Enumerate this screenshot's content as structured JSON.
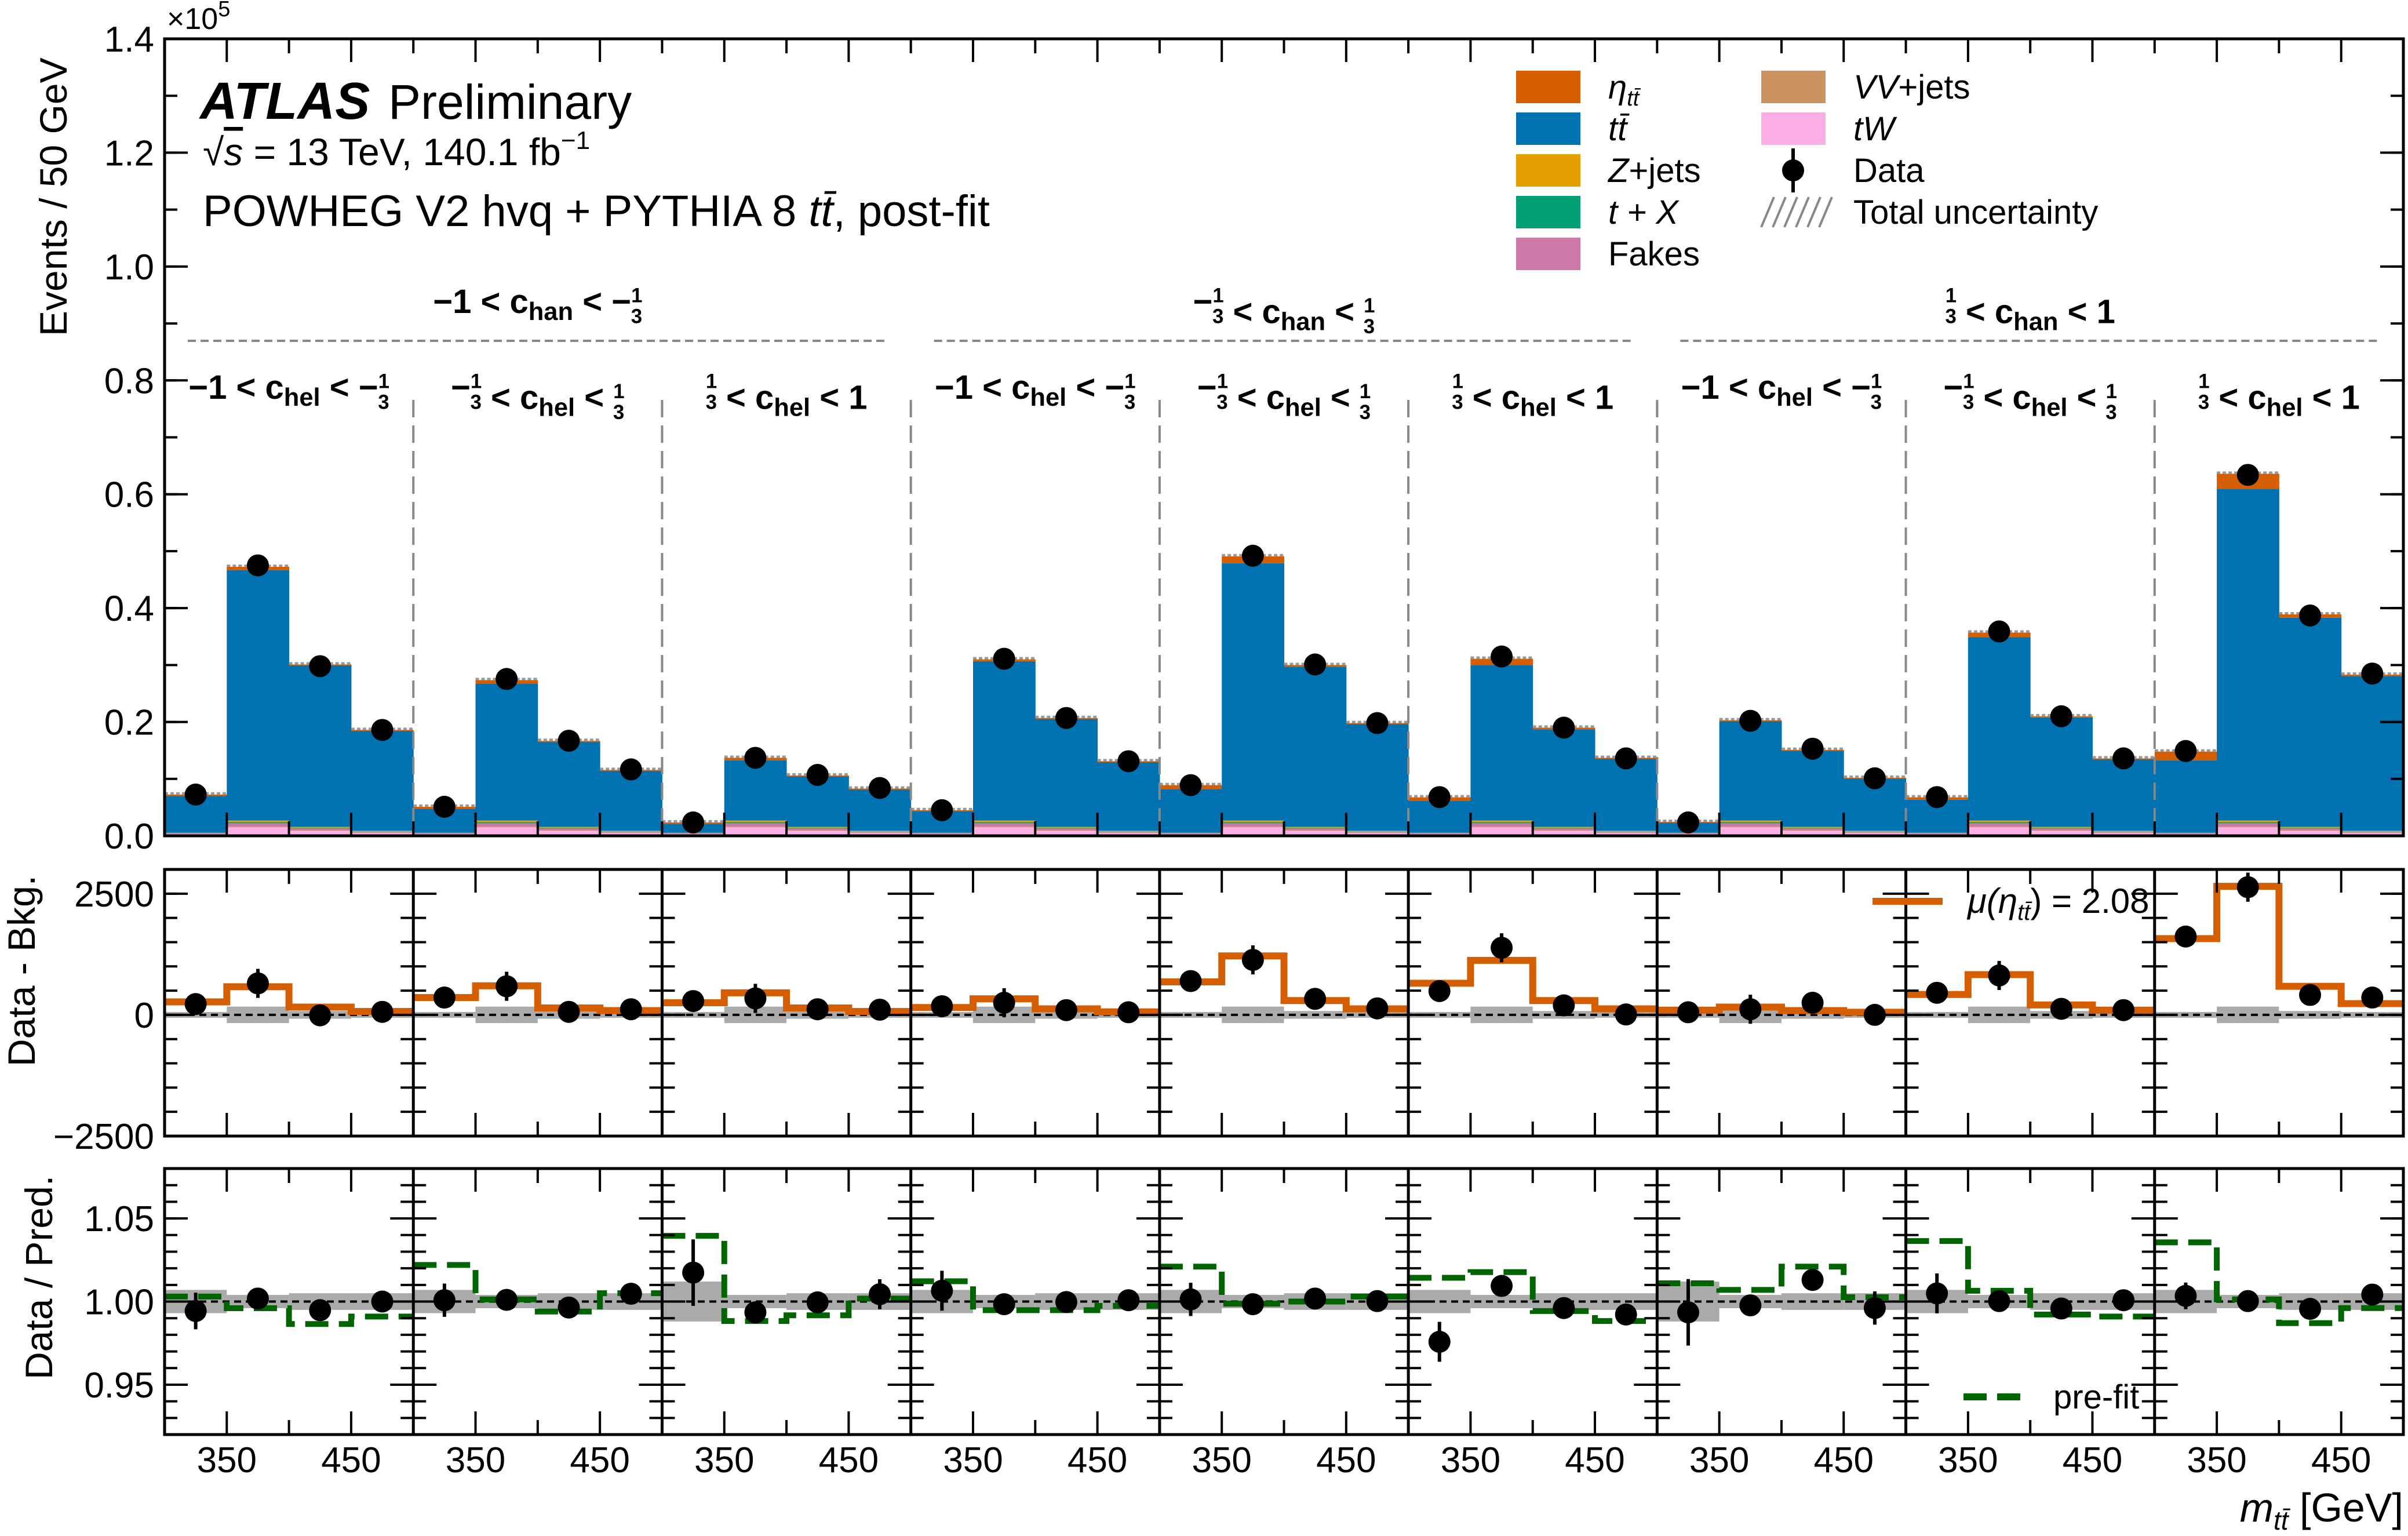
{
  "header": {
    "experiment": "ATLAS",
    "status": "Preliminary",
    "energy_line_prefix": "√",
    "energy_line_s": "s",
    "energy_line": " = 13 TeV, 140.1 fb",
    "energy_line_sup": "−1",
    "generator_line": "POWHEG V2 hvq + PYTHIA 8 ",
    "generator_tt": "tt̄",
    "generator_suffix": ", post-fit"
  },
  "chart_data": {
    "type": "bar",
    "subtype": "stacked histogram with ratio panels",
    "x_axis": {
      "label": "m",
      "label_sub": "tt̄",
      "label_unit": " [GeV]",
      "bin_edges_per_region": [
        300,
        350,
        400,
        450,
        500
      ],
      "tick_labels": [
        "350",
        "450"
      ]
    },
    "main_panel": {
      "ylabel": "Events / 50 GeV",
      "multiplier": "×10",
      "multiplier_exp": "5",
      "ylim": [
        0,
        1.4
      ],
      "yticks": [
        "0.0",
        "0.2",
        "0.4",
        "0.6",
        "0.8",
        "1.0",
        "1.2",
        "1.4"
      ],
      "total_prediction": [
        0.0725,
        0.4725,
        0.301,
        0.186,
        0.051,
        0.2735,
        0.1667,
        0.1157,
        0.0235,
        0.137,
        0.106,
        0.083,
        0.045,
        0.31,
        0.207,
        0.131,
        0.089,
        0.491,
        0.3,
        0.198,
        0.0676,
        0.311,
        0.19,
        0.137,
        0.0245,
        0.203,
        0.151,
        0.102,
        0.0676,
        0.357,
        0.21,
        0.136,
        0.148,
        0.636,
        0.389,
        0.283
      ],
      "data": [
        0.0725,
        0.475,
        0.298,
        0.186,
        0.051,
        0.2755,
        0.167,
        0.1167,
        0.0235,
        0.137,
        0.107,
        0.084,
        0.045,
        0.311,
        0.207,
        0.131,
        0.089,
        0.492,
        0.301,
        0.198,
        0.068,
        0.315,
        0.19,
        0.136,
        0.0235,
        0.202,
        0.153,
        0.101,
        0.068,
        0.359,
        0.21,
        0.136,
        0.149,
        0.634,
        0.387,
        0.285
      ],
      "backgrounds_per_region_pattern": {
        "tW": [
          0.003,
          0.015,
          0.009,
          0.005
        ],
        "VV+jets": [
          0.0003,
          0.001,
          0.0007,
          0.0004
        ],
        "Fakes": [
          0.001,
          0.006,
          0.003,
          0.002
        ],
        "t+X": [
          0.0005,
          0.002,
          0.001,
          0.0005
        ],
        "Z+jets": [
          0.0005,
          0.003,
          0.002,
          0.001
        ]
      }
    },
    "legend": [
      {
        "key": "signal",
        "label": "η",
        "sub": "tt̄",
        "italic": true,
        "color": "#d55e00"
      },
      {
        "key": "ttbar",
        "label": "tt̄",
        "sub": "",
        "italic": true,
        "color": "#0072b2"
      },
      {
        "key": "Z+jets",
        "label": "Z",
        "suffix": "+jets",
        "italic": true,
        "color": "#e69f00"
      },
      {
        "key": "t+X",
        "label": "t + X",
        "italic": true,
        "color": "#009e73"
      },
      {
        "key": "Fakes",
        "label": "Fakes",
        "italic": false,
        "color": "#cc79a7"
      },
      {
        "key": "VV+jets",
        "label": "VV",
        "suffix": "+jets",
        "italic": true,
        "color": "#ca9161"
      },
      {
        "key": "tW",
        "label": "tW",
        "italic": true,
        "color": "#fbafe4"
      },
      {
        "key": "data",
        "label": "Data",
        "italic": false,
        "color": "#000000"
      },
      {
        "key": "unc",
        "label": "Total uncertainty",
        "italic": false,
        "color": "#888888"
      }
    ],
    "regions_chan": [
      {
        "lo": "−1",
        "var": "c",
        "sub": "han",
        "hi": "−1/3"
      },
      {
        "lo": "−1/3",
        "var": "c",
        "sub": "han",
        "hi": "1/3"
      },
      {
        "lo": "1/3",
        "var": "c",
        "sub": "han",
        "hi": "1"
      }
    ],
    "regions_chel": [
      {
        "lo": "−1",
        "var": "c",
        "sub": "hel",
        "hi": "−1/3"
      },
      {
        "lo": "−1/3",
        "var": "c",
        "sub": "hel",
        "hi": "1/3"
      },
      {
        "lo": "1/3",
        "var": "c",
        "sub": "hel",
        "hi": "1"
      }
    ],
    "diff_panel": {
      "ylabel": "Data - Bkg.",
      "ylim": [
        -2500,
        3000
      ],
      "yticks": [
        "−2500",
        "0",
        "2500"
      ],
      "legend_label": "μ(η",
      "legend_sub": "tt̄",
      "legend_value": ") = 2.08",
      "signal_color": "#d55e00",
      "signal": [
        268,
        580,
        160,
        71,
        357,
        600,
        143,
        89,
        250,
        455,
        143,
        71,
        152,
        330,
        125,
        62,
        680,
        1215,
        295,
        125,
        652,
        1125,
        295,
        125,
        98,
        161,
        89,
        54,
        420,
        830,
        205,
        98,
        1572,
        2652,
        589,
        232
      ],
      "data": [
        223,
        650,
        -10,
        62,
        357,
        590,
        62,
        116,
        285,
        340,
        116,
        107,
        179,
        250,
        98,
        54,
        697,
        1134,
        330,
        134,
        491,
        1384,
        196,
        9,
        54,
        116,
        250,
        0,
        455,
        813,
        125,
        98,
        1616,
        2634,
        411,
        357
      ],
      "data_err_pattern": [
        130,
        300,
        220,
        170
      ],
      "unc_pattern": [
        60,
        170,
        80,
        60
      ]
    },
    "ratio_panel": {
      "ylabel": "Data / Pred.",
      "ylim": [
        0.92,
        1.08
      ],
      "yticks": [
        "0.95",
        "1.00",
        "1.05"
      ],
      "prefit_label": "pre-fit",
      "prefit_color": "#006400",
      "data": [
        0.9943,
        1.0018,
        0.9948,
        1.0,
        1.0008,
        1.001,
        0.9964,
        1.0047,
        1.0174,
        0.9935,
        0.9995,
        1.0044,
        1.0065,
        0.9984,
        0.9997,
        1.0008,
        1.0013,
        0.9984,
        1.0018,
        1.0003,
        0.9758,
        1.0094,
        0.9961,
        0.9922,
        0.9935,
        0.9977,
        1.013,
        0.9961,
        1.0049,
        1.0003,
        0.9958,
        1.0008,
        1.0034,
        1.0003,
        0.9956,
        1.0042
      ],
      "data_err": [
        0.011,
        0.004,
        0.006,
        0.006,
        0.01,
        0.004,
        0.005,
        0.006,
        0.02,
        0.006,
        0.006,
        0.009,
        0.012,
        0.004,
        0.005,
        0.006,
        0.01,
        0.003,
        0.004,
        0.006,
        0.012,
        0.004,
        0.005,
        0.006,
        0.02,
        0.005,
        0.006,
        0.01,
        0.012,
        0.004,
        0.005,
        0.006,
        0.008,
        0.003,
        0.004,
        0.005
      ],
      "prefit": [
        1.003,
        0.996,
        0.9865,
        0.991,
        1.022,
        1.0013,
        0.994,
        1.005,
        1.0395,
        0.9883,
        0.9917,
        1.0018,
        1.0122,
        0.9948,
        0.9948,
        0.9974,
        1.021,
        0.9987,
        1.0,
        1.003,
        1.0143,
        1.0177,
        0.9943,
        0.9883,
        1.011,
        1.007,
        1.021,
        1.0026,
        1.0364,
        1.0065,
        0.9922,
        0.991,
        1.0356,
        1.0013,
        0.987,
        0.9961
      ],
      "unc_pattern": [
        0.007,
        0.004,
        0.005,
        0.005
      ]
    }
  }
}
